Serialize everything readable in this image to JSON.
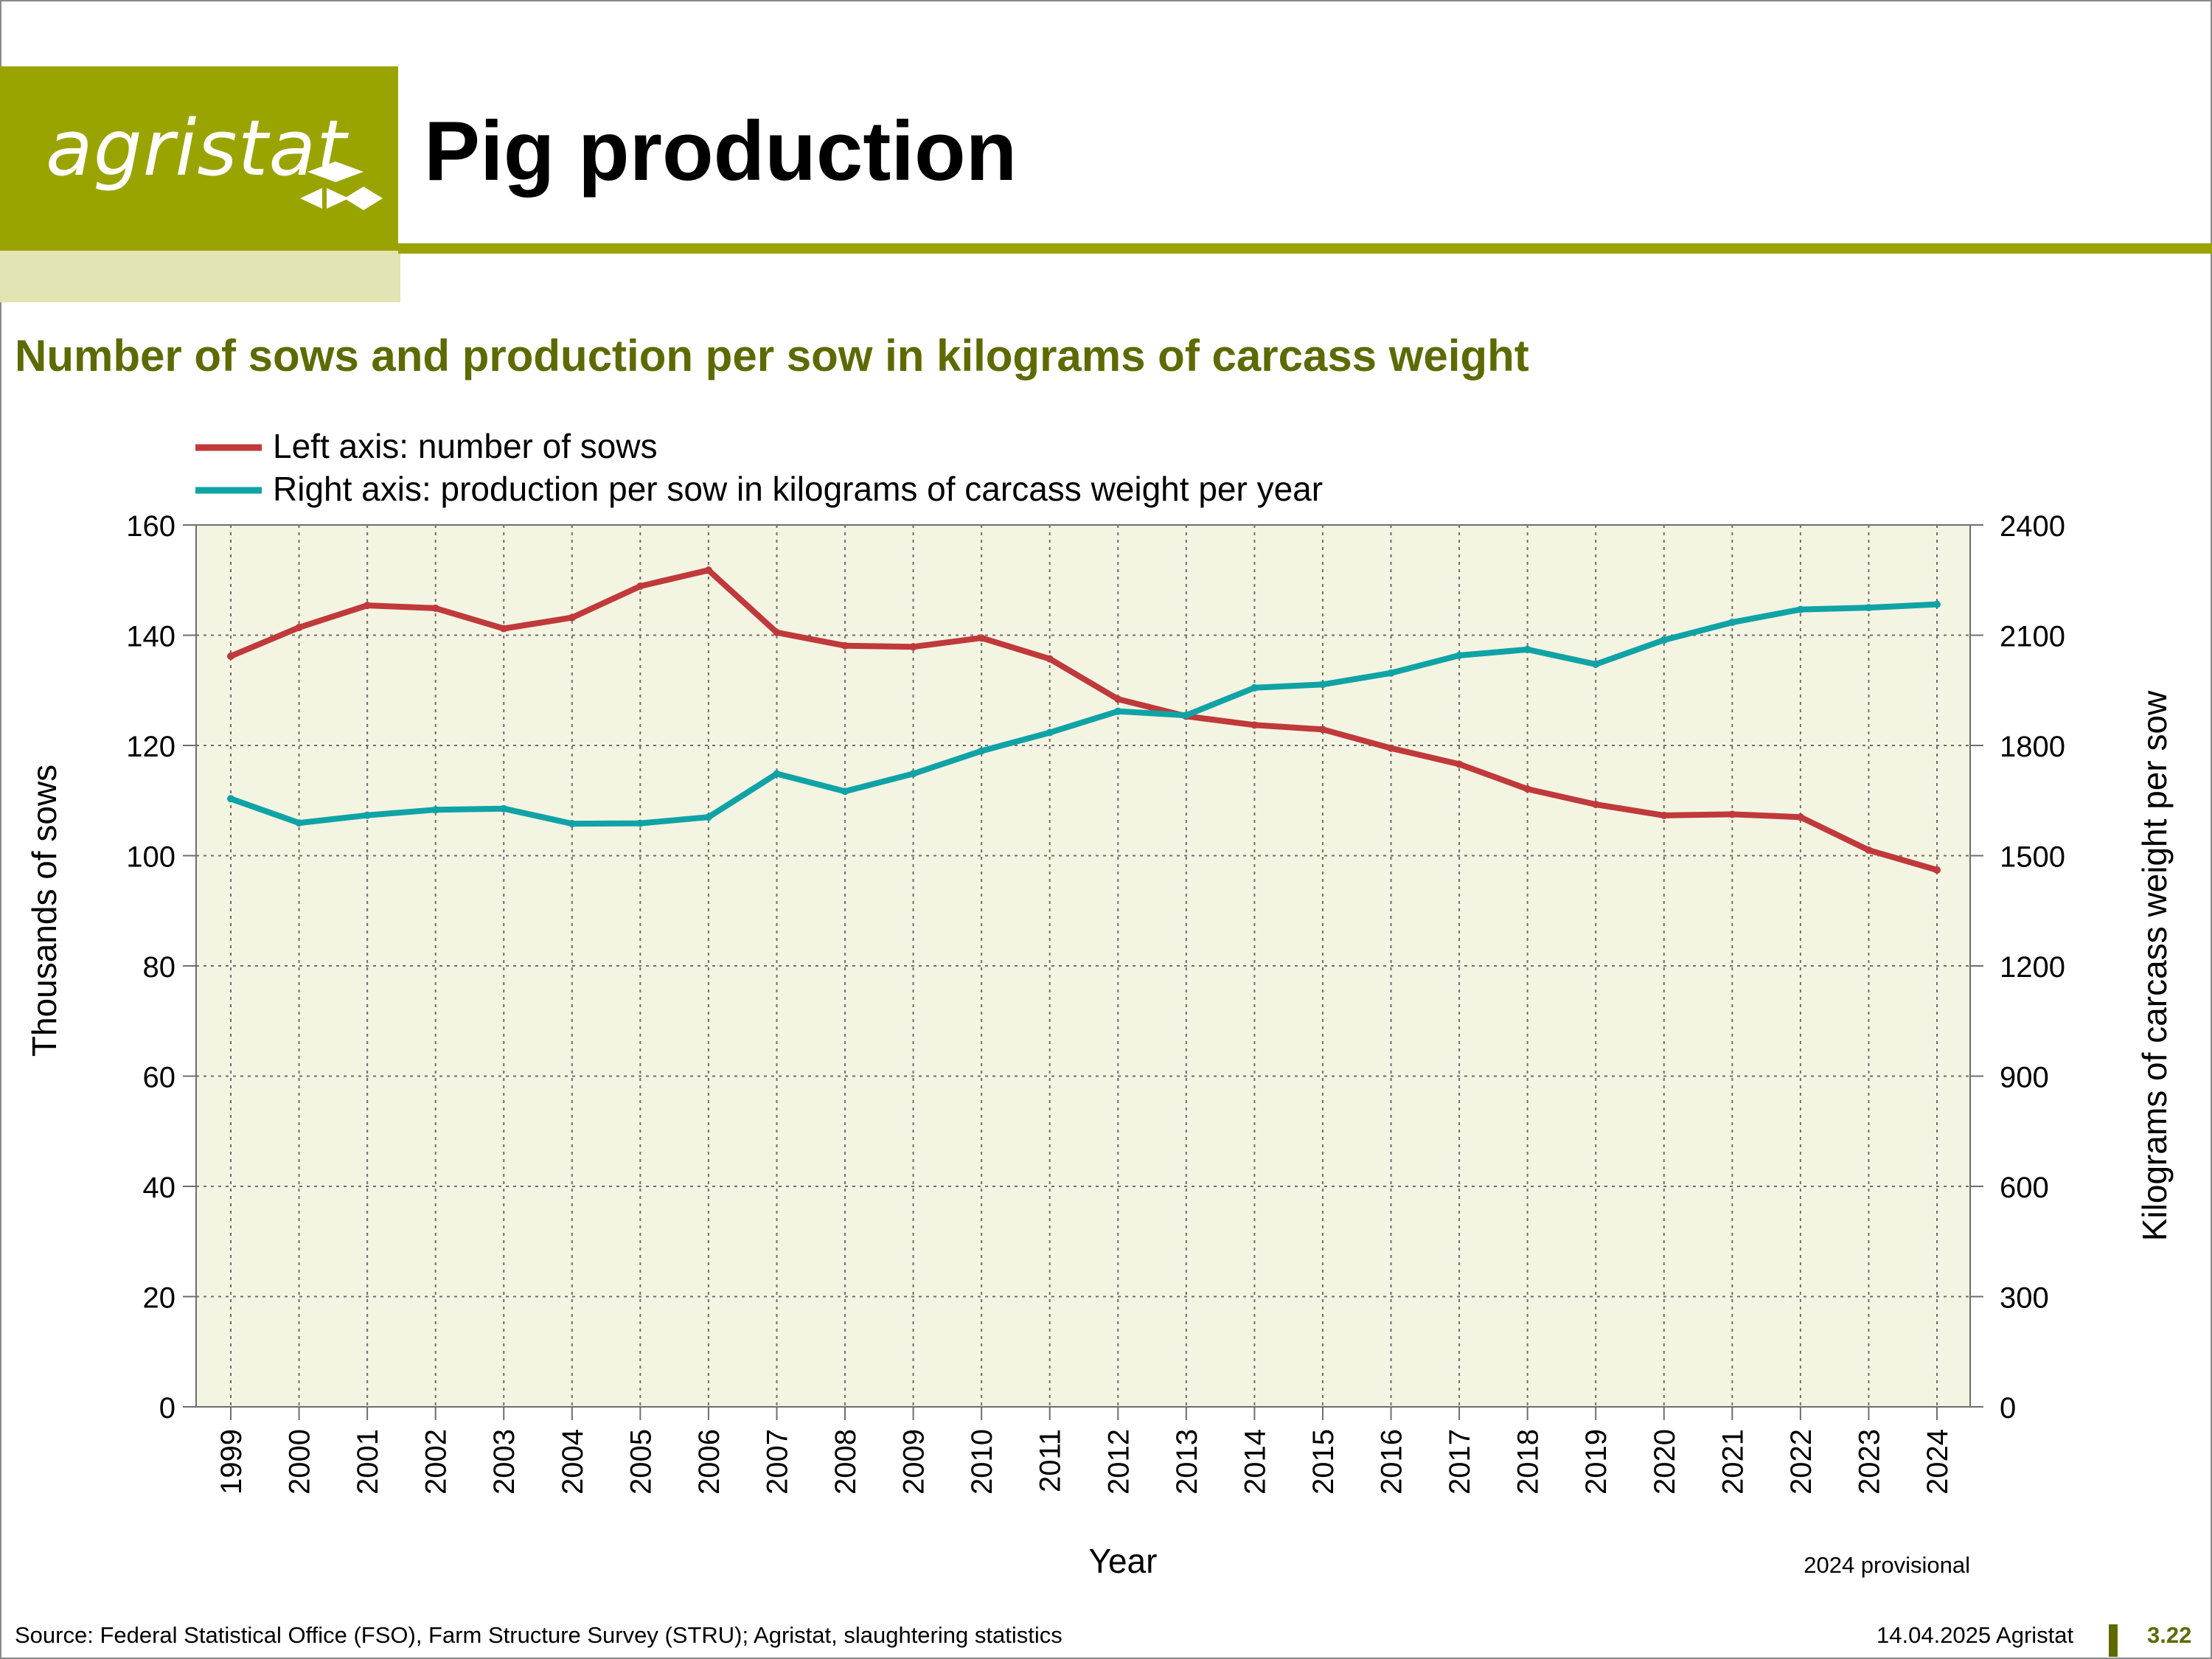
{
  "header": {
    "logo_text": "agristat",
    "page_title": "Pig production"
  },
  "footer": {
    "source": "Source: Federal Statistical Office (FSO), Farm Structure Survey (STRU); Agristat, slaughtering statistics",
    "date_org": "14.04.2025 Agristat",
    "page_number": "3.22"
  },
  "colors": {
    "brand": "#9aa400",
    "brand_pale": "#e2e4b3",
    "title_green": "#5e6a00",
    "plot_bg": "#f4f4e3",
    "sows": "#c0393b",
    "production": "#10a3a6"
  },
  "chart_data": {
    "type": "line",
    "title": "Number of sows and production per sow in kilograms of carcass weight",
    "xlabel": "Year",
    "ylabel": "Thousands of sows",
    "y2label": "Kilograms of carcass weight per sow",
    "note": "2024 provisional",
    "ylim": [
      0,
      160
    ],
    "y2lim": [
      0,
      2400
    ],
    "yticks": [
      "0",
      "20",
      "40",
      "60",
      "80",
      "100",
      "120",
      "140",
      "160"
    ],
    "y2ticks": [
      "0",
      "300",
      "600",
      "900",
      "1200",
      "1500",
      "1800",
      "2100",
      "2400"
    ],
    "grid": true,
    "legend_position": "top-left",
    "x": [
      "1999",
      "2000",
      "2001",
      "2002",
      "2003",
      "2004",
      "2005",
      "2006",
      "2007",
      "2008",
      "2009",
      "2010",
      "2011",
      "2012",
      "2013",
      "2014",
      "2015",
      "2016",
      "2017",
      "2018",
      "2019",
      "2020",
      "2021",
      "2022",
      "2023",
      "2024"
    ],
    "series": [
      {
        "name": "Left axis: number of sows",
        "axis": "left",
        "color": "#c0393b",
        "values": [
          136.2,
          141.4,
          145.4,
          144.9,
          141.2,
          143.2,
          148.9,
          151.8,
          140.5,
          138.1,
          137.9,
          139.5,
          135.7,
          128.4,
          125.3,
          123.7,
          122.9,
          119.5,
          116.6,
          112.1,
          109.3,
          107.3,
          107.5,
          107.0,
          101.0,
          97.4
        ]
      },
      {
        "name": "Right axis: production per sow in kilograms of carcass weight per year",
        "axis": "right",
        "color": "#10a3a6",
        "values": [
          1655,
          1589,
          1610,
          1625,
          1628,
          1587,
          1588,
          1605,
          1723,
          1675,
          1723,
          1785,
          1835,
          1893,
          1882,
          1957,
          1966,
          1997,
          2045,
          2061,
          2021,
          2087,
          2135,
          2170,
          2175,
          2184
        ]
      }
    ]
  }
}
